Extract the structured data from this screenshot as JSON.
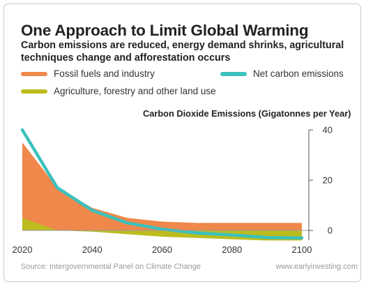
{
  "header": {
    "title": "One Approach to Limit Global Warming",
    "subtitle": "Carbon emissions are reduced, energy demand shrinks, agricultural techniques change and afforestation occurs"
  },
  "colors": {
    "fossil": "#f0874b",
    "net": "#3cc1bc",
    "agri": "#bcbc1e",
    "axis": "#555555"
  },
  "footer": {
    "source": "Source: Intergovernmental Panel on Climate Change",
    "site": "www.earlyinvesting.com"
  },
  "chart_data": {
    "type": "area",
    "title": "One Approach to Limit Global Warming",
    "ylabel": "Carbon Dioxide Emissions (Gigatonnes per Year)",
    "x": [
      2020,
      2030,
      2040,
      2050,
      2060,
      2070,
      2080,
      2090,
      2100
    ],
    "xticks": [
      2020,
      2040,
      2060,
      2080,
      2100
    ],
    "yticks": [
      0,
      20,
      40
    ],
    "xlim": [
      2020,
      2100
    ],
    "ylim": [
      -3,
      40
    ],
    "legend_position": "top",
    "series": [
      {
        "name": "Fossil fuels and industry",
        "color_key": "fossil",
        "values": [
          35,
          17,
          9,
          5,
          3.5,
          3,
          3,
          3,
          3
        ]
      },
      {
        "name": "Net carbon emissions",
        "color_key": "net",
        "values": [
          40,
          17,
          8,
          3,
          0.5,
          -1,
          -1.8,
          -2.8,
          -3
        ]
      },
      {
        "name": "Agriculture, forestry and other land use",
        "color_key": "agri",
        "values": [
          5,
          0,
          -0.5,
          -1.5,
          -2.5,
          -3,
          -3.5,
          -4,
          -4
        ]
      }
    ]
  }
}
